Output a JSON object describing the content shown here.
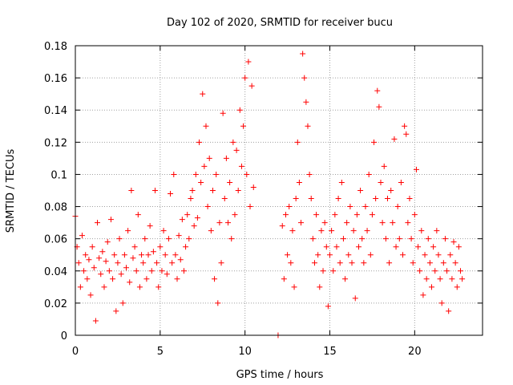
{
  "chart_data": {
    "type": "scatter",
    "title": "Day 102 of 2020, SRMTID for receiver bucu",
    "xlabel": "GPS time / hours",
    "ylabel": "SRMTID / TECUs",
    "xlim": [
      0,
      24
    ],
    "ylim": [
      0,
      0.18
    ],
    "x_ticks": [
      0,
      5,
      10,
      15,
      20
    ],
    "y_ticks": [
      0,
      0.02,
      0.04,
      0.06,
      0.08,
      0.1,
      0.12,
      0.14,
      0.16,
      0.18
    ],
    "x_tick_labels": [
      "0",
      "5",
      "10",
      "15",
      "20"
    ],
    "y_tick_labels": [
      "0",
      "0.02",
      "0.04",
      "0.06",
      "0.08",
      "0.1",
      "0.12",
      "0.14",
      "0.16",
      "0.18"
    ],
    "grid": true,
    "marker": "+",
    "color": "#ff0000",
    "series": [
      {
        "name": "SRMTID",
        "points": [
          [
            0.0,
            0.074
          ],
          [
            0.1,
            0.055
          ],
          [
            0.2,
            0.045
          ],
          [
            0.3,
            0.03
          ],
          [
            0.4,
            0.062
          ],
          [
            0.5,
            0.04
          ],
          [
            0.6,
            0.05
          ],
          [
            0.7,
            0.035
          ],
          [
            0.8,
            0.047
          ],
          [
            0.9,
            0.025
          ],
          [
            1.0,
            0.055
          ],
          [
            1.1,
            0.042
          ],
          [
            1.2,
            0.009
          ],
          [
            1.3,
            0.07
          ],
          [
            1.4,
            0.048
          ],
          [
            1.5,
            0.038
          ],
          [
            1.6,
            0.052
          ],
          [
            1.7,
            0.03
          ],
          [
            1.8,
            0.046
          ],
          [
            1.9,
            0.058
          ],
          [
            2.0,
            0.04
          ],
          [
            2.1,
            0.072
          ],
          [
            2.2,
            0.035
          ],
          [
            2.3,
            0.05
          ],
          [
            2.4,
            0.015
          ],
          [
            2.5,
            0.045
          ],
          [
            2.6,
            0.06
          ],
          [
            2.7,
            0.038
          ],
          [
            2.8,
            0.02
          ],
          [
            2.9,
            0.05
          ],
          [
            3.0,
            0.042
          ],
          [
            3.1,
            0.065
          ],
          [
            3.2,
            0.033
          ],
          [
            3.3,
            0.09
          ],
          [
            3.4,
            0.048
          ],
          [
            3.5,
            0.055
          ],
          [
            3.6,
            0.04
          ],
          [
            3.7,
            0.075
          ],
          [
            3.8,
            0.03
          ],
          [
            3.9,
            0.05
          ],
          [
            4.0,
            0.045
          ],
          [
            4.1,
            0.06
          ],
          [
            4.2,
            0.035
          ],
          [
            4.3,
            0.05
          ],
          [
            4.4,
            0.068
          ],
          [
            4.5,
            0.04
          ],
          [
            4.6,
            0.052
          ],
          [
            4.7,
            0.09
          ],
          [
            4.8,
            0.045
          ],
          [
            4.9,
            0.03
          ],
          [
            5.0,
            0.055
          ],
          [
            5.1,
            0.04
          ],
          [
            5.2,
            0.065
          ],
          [
            5.3,
            0.05
          ],
          [
            5.4,
            0.038
          ],
          [
            5.5,
            0.06
          ],
          [
            5.6,
            0.088
          ],
          [
            5.7,
            0.045
          ],
          [
            5.8,
            0.1
          ],
          [
            5.9,
            0.05
          ],
          [
            6.0,
            0.035
          ],
          [
            6.1,
            0.062
          ],
          [
            6.2,
            0.047
          ],
          [
            6.3,
            0.072
          ],
          [
            6.4,
            0.04
          ],
          [
            6.5,
            0.055
          ],
          [
            6.6,
            0.075
          ],
          [
            6.7,
            0.06
          ],
          [
            6.8,
            0.085
          ],
          [
            6.9,
            0.09
          ],
          [
            7.0,
            0.068
          ],
          [
            7.1,
            0.1
          ],
          [
            7.2,
            0.073
          ],
          [
            7.3,
            0.12
          ],
          [
            7.4,
            0.095
          ],
          [
            7.5,
            0.15
          ],
          [
            7.6,
            0.105
          ],
          [
            7.7,
            0.13
          ],
          [
            7.8,
            0.08
          ],
          [
            7.9,
            0.11
          ],
          [
            8.0,
            0.065
          ],
          [
            8.1,
            0.09
          ],
          [
            8.2,
            0.035
          ],
          [
            8.3,
            0.1
          ],
          [
            8.4,
            0.02
          ],
          [
            8.5,
            0.07
          ],
          [
            8.6,
            0.045
          ],
          [
            8.7,
            0.138
          ],
          [
            8.8,
            0.085
          ],
          [
            8.9,
            0.11
          ],
          [
            9.0,
            0.07
          ],
          [
            9.1,
            0.095
          ],
          [
            9.2,
            0.06
          ],
          [
            9.3,
            0.12
          ],
          [
            9.4,
            0.075
          ],
          [
            9.5,
            0.115
          ],
          [
            9.6,
            0.09
          ],
          [
            9.7,
            0.14
          ],
          [
            9.8,
            0.105
          ],
          [
            9.9,
            0.13
          ],
          [
            10.0,
            0.16
          ],
          [
            10.1,
            0.1
          ],
          [
            10.2,
            0.17
          ],
          [
            10.3,
            0.08
          ],
          [
            10.4,
            0.155
          ],
          [
            10.5,
            0.092
          ],
          [
            11.95,
            0.0
          ],
          [
            12.2,
            0.068
          ],
          [
            12.3,
            0.035
          ],
          [
            12.4,
            0.075
          ],
          [
            12.5,
            0.05
          ],
          [
            12.6,
            0.08
          ],
          [
            12.7,
            0.045
          ],
          [
            12.8,
            0.065
          ],
          [
            12.9,
            0.03
          ],
          [
            13.0,
            0.085
          ],
          [
            13.1,
            0.12
          ],
          [
            13.2,
            0.095
          ],
          [
            13.3,
            0.07
          ],
          [
            13.4,
            0.175
          ],
          [
            13.5,
            0.16
          ],
          [
            13.6,
            0.145
          ],
          [
            13.7,
            0.13
          ],
          [
            13.8,
            0.1
          ],
          [
            13.9,
            0.085
          ],
          [
            14.0,
            0.06
          ],
          [
            14.1,
            0.045
          ],
          [
            14.2,
            0.075
          ],
          [
            14.3,
            0.05
          ],
          [
            14.4,
            0.03
          ],
          [
            14.5,
            0.065
          ],
          [
            14.6,
            0.04
          ],
          [
            14.7,
            0.07
          ],
          [
            14.8,
            0.055
          ],
          [
            14.9,
            0.018
          ],
          [
            15.0,
            0.05
          ],
          [
            15.1,
            0.065
          ],
          [
            15.2,
            0.04
          ],
          [
            15.3,
            0.075
          ],
          [
            15.4,
            0.055
          ],
          [
            15.5,
            0.085
          ],
          [
            15.6,
            0.045
          ],
          [
            15.7,
            0.095
          ],
          [
            15.8,
            0.06
          ],
          [
            15.9,
            0.035
          ],
          [
            16.0,
            0.07
          ],
          [
            16.1,
            0.05
          ],
          [
            16.2,
            0.08
          ],
          [
            16.3,
            0.045
          ],
          [
            16.4,
            0.065
          ],
          [
            16.5,
            0.023
          ],
          [
            16.6,
            0.075
          ],
          [
            16.7,
            0.055
          ],
          [
            16.8,
            0.09
          ],
          [
            16.9,
            0.06
          ],
          [
            17.0,
            0.045
          ],
          [
            17.1,
            0.08
          ],
          [
            17.2,
            0.065
          ],
          [
            17.3,
            0.1
          ],
          [
            17.4,
            0.05
          ],
          [
            17.5,
            0.075
          ],
          [
            17.6,
            0.12
          ],
          [
            17.7,
            0.085
          ],
          [
            17.8,
            0.152
          ],
          [
            17.9,
            0.142
          ],
          [
            18.0,
            0.095
          ],
          [
            18.1,
            0.07
          ],
          [
            18.2,
            0.105
          ],
          [
            18.3,
            0.06
          ],
          [
            18.4,
            0.085
          ],
          [
            18.5,
            0.045
          ],
          [
            18.6,
            0.09
          ],
          [
            18.7,
            0.07
          ],
          [
            18.8,
            0.122
          ],
          [
            18.9,
            0.055
          ],
          [
            19.0,
            0.08
          ],
          [
            19.1,
            0.06
          ],
          [
            19.2,
            0.095
          ],
          [
            19.3,
            0.05
          ],
          [
            19.4,
            0.13
          ],
          [
            19.5,
            0.125
          ],
          [
            19.6,
            0.07
          ],
          [
            19.7,
            0.085
          ],
          [
            19.8,
            0.06
          ],
          [
            19.9,
            0.045
          ],
          [
            20.0,
            0.075
          ],
          [
            20.1,
            0.103
          ],
          [
            20.2,
            0.055
          ],
          [
            20.3,
            0.04
          ],
          [
            20.4,
            0.065
          ],
          [
            20.5,
            0.025
          ],
          [
            20.6,
            0.05
          ],
          [
            20.7,
            0.035
          ],
          [
            20.8,
            0.06
          ],
          [
            20.9,
            0.045
          ],
          [
            21.0,
            0.03
          ],
          [
            21.1,
            0.055
          ],
          [
            21.2,
            0.04
          ],
          [
            21.3,
            0.065
          ],
          [
            21.4,
            0.05
          ],
          [
            21.5,
            0.035
          ],
          [
            21.6,
            0.02
          ],
          [
            21.7,
            0.045
          ],
          [
            21.8,
            0.06
          ],
          [
            21.9,
            0.04
          ],
          [
            22.0,
            0.015
          ],
          [
            22.1,
            0.05
          ],
          [
            22.2,
            0.035
          ],
          [
            22.3,
            0.058
          ],
          [
            22.4,
            0.045
          ],
          [
            22.5,
            0.03
          ],
          [
            22.6,
            0.055
          ],
          [
            22.7,
            0.04
          ],
          [
            22.8,
            0.035
          ]
        ]
      }
    ]
  }
}
